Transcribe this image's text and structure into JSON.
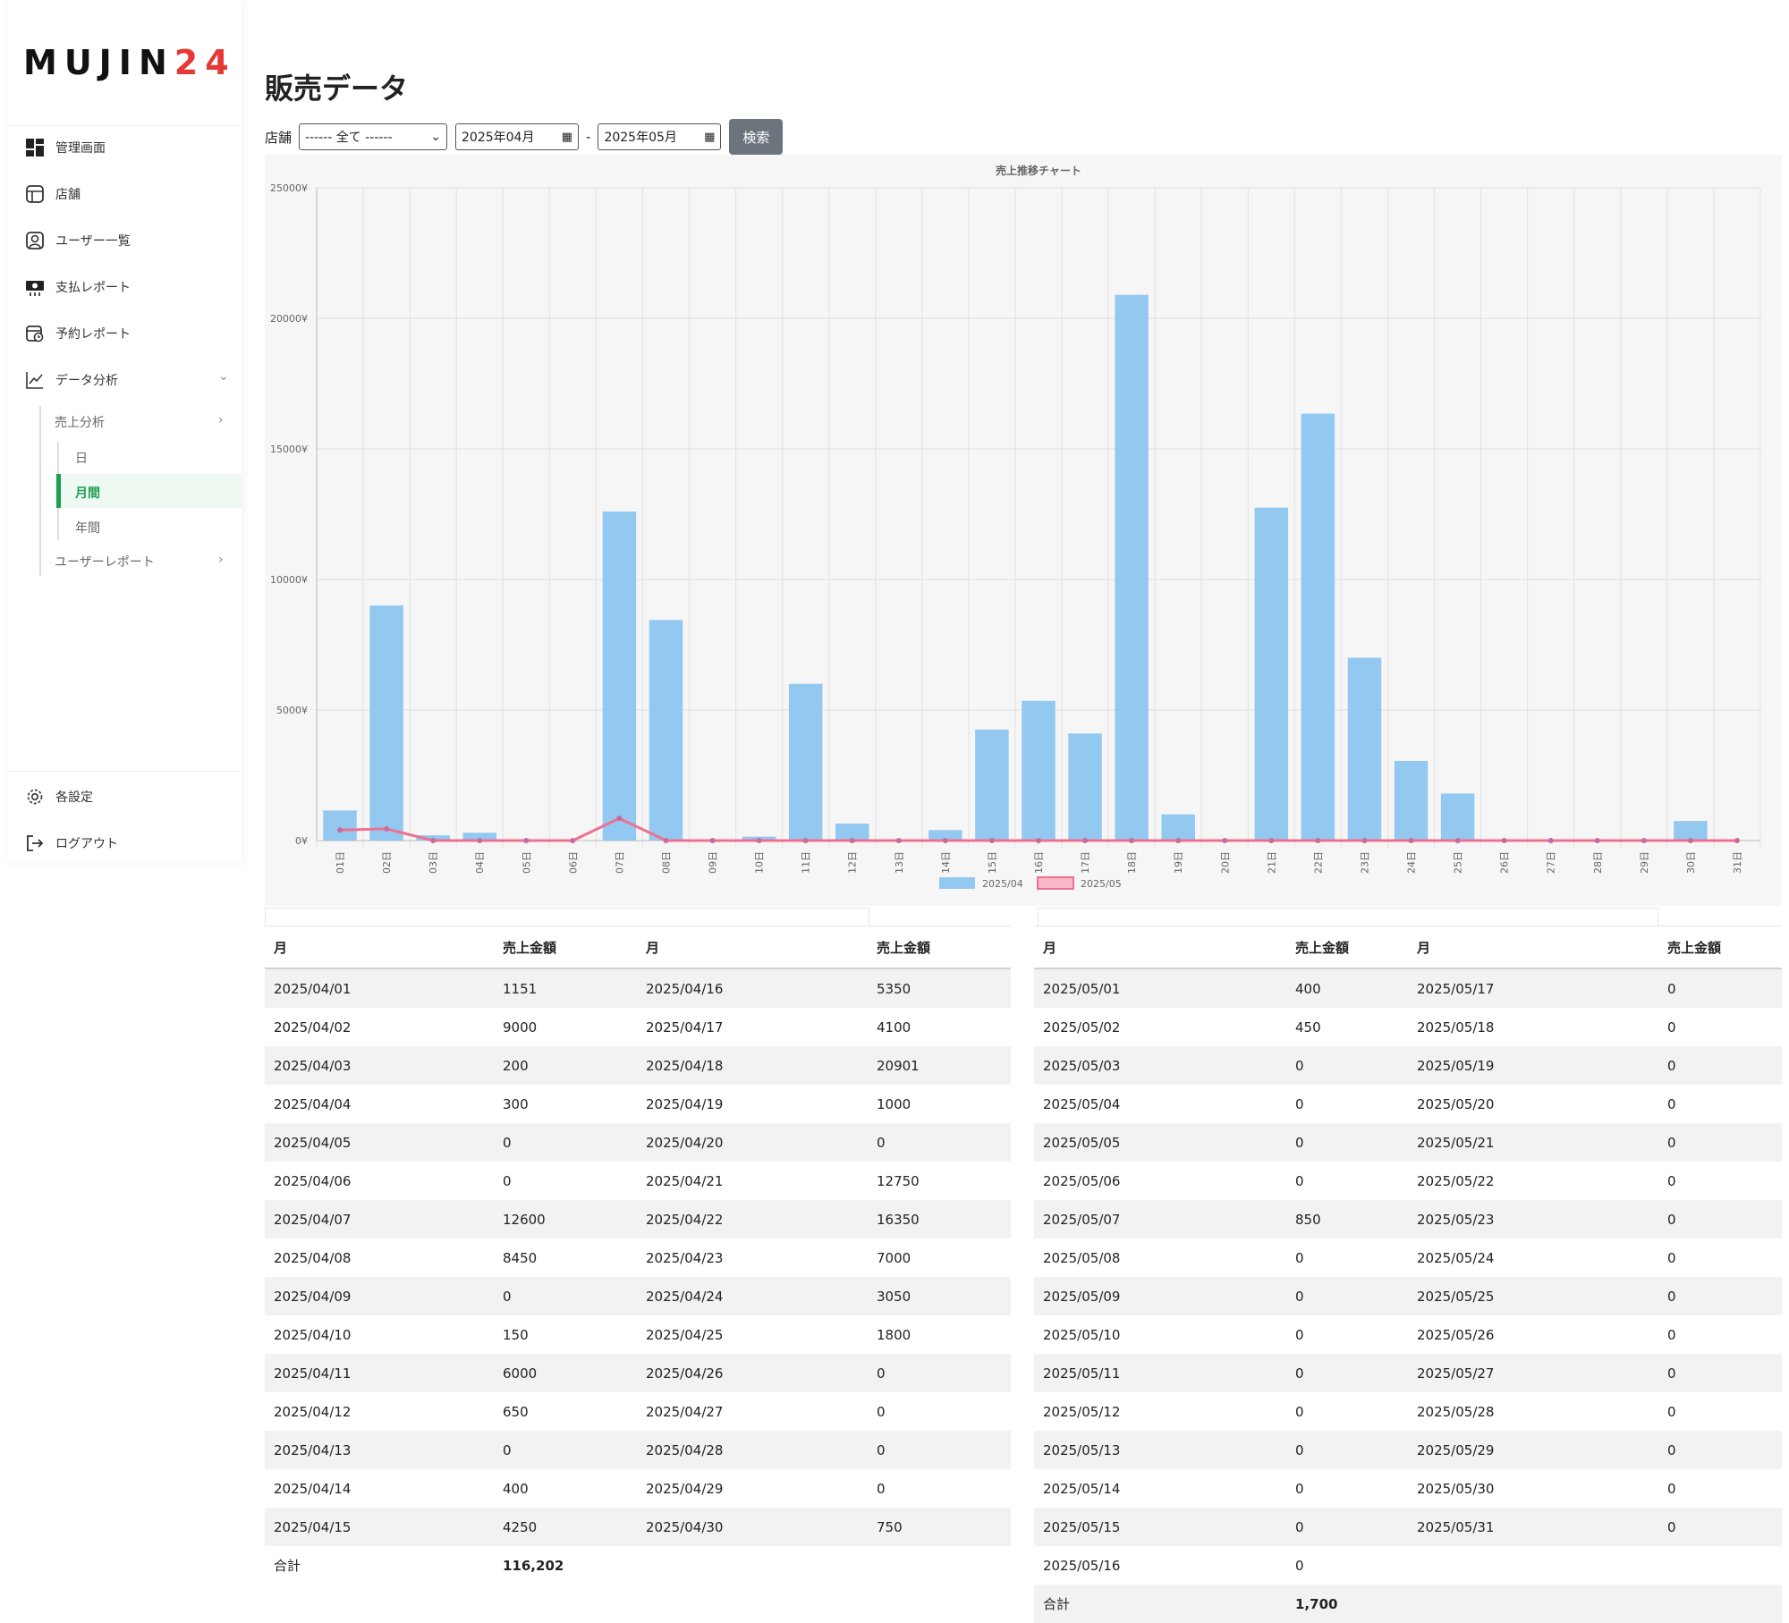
{
  "brand": {
    "logo_main": "MUJIN",
    "logo_accent": "24"
  },
  "sidebar": {
    "items": [
      {
        "label": "管理画面"
      },
      {
        "label": "店舗"
      },
      {
        "label": "ユーザー一覧"
      },
      {
        "label": "支払レポート"
      },
      {
        "label": "予約レポート"
      },
      {
        "label": "データ分析"
      }
    ],
    "analysis": {
      "sales": "売上分析",
      "day": "日",
      "month": "月間",
      "year": "年間",
      "user_report": "ユーザーレポート"
    },
    "settings": "各設定",
    "logout": "ログアウト"
  },
  "page": {
    "title": "販売データ"
  },
  "filters": {
    "store_label": "店舗",
    "store_value": "------ 全て ------",
    "from": "2025年04月",
    "sep": "-",
    "to": "2025年05月",
    "search": "検索"
  },
  "chart_data": {
    "type": "bar",
    "title": "売上推移チャート",
    "categories": [
      "01日",
      "02日",
      "03日",
      "04日",
      "05日",
      "06日",
      "07日",
      "08日",
      "09日",
      "10日",
      "11日",
      "12日",
      "13日",
      "14日",
      "15日",
      "16日",
      "17日",
      "18日",
      "19日",
      "20日",
      "21日",
      "22日",
      "23日",
      "24日",
      "25日",
      "26日",
      "27日",
      "28日",
      "29日",
      "30日",
      "31日"
    ],
    "yticks": [
      "0¥",
      "5000¥",
      "10000¥",
      "15000¥",
      "20000¥",
      "25000¥"
    ],
    "ylim": [
      0,
      25000
    ],
    "grid": true,
    "legend": "bottom",
    "series": [
      {
        "name": "2025/04",
        "type": "bar",
        "color": "#93c8f0",
        "values": [
          1151,
          9000,
          200,
          300,
          0,
          0,
          12600,
          8450,
          0,
          150,
          6000,
          650,
          0,
          400,
          4250,
          5350,
          4100,
          20901,
          1000,
          0,
          12750,
          16350,
          7000,
          3050,
          1800,
          0,
          0,
          0,
          0,
          750,
          null
        ]
      },
      {
        "name": "2025/05",
        "type": "line",
        "color": "#f07090",
        "values": [
          400,
          450,
          0,
          0,
          0,
          0,
          850,
          0,
          0,
          0,
          0,
          0,
          0,
          0,
          0,
          0,
          0,
          0,
          0,
          0,
          0,
          0,
          0,
          0,
          0,
          0,
          0,
          0,
          0,
          0,
          0
        ]
      }
    ]
  },
  "table_april": {
    "headers": [
      "月",
      "売上金額",
      "月",
      "売上金額"
    ],
    "rows": [
      [
        "2025/04/01",
        "1151",
        "2025/04/16",
        "5350"
      ],
      [
        "2025/04/02",
        "9000",
        "2025/04/17",
        "4100"
      ],
      [
        "2025/04/03",
        "200",
        "2025/04/18",
        "20901"
      ],
      [
        "2025/04/04",
        "300",
        "2025/04/19",
        "1000"
      ],
      [
        "2025/04/05",
        "0",
        "2025/04/20",
        "0"
      ],
      [
        "2025/04/06",
        "0",
        "2025/04/21",
        "12750"
      ],
      [
        "2025/04/07",
        "12600",
        "2025/04/22",
        "16350"
      ],
      [
        "2025/04/08",
        "8450",
        "2025/04/23",
        "7000"
      ],
      [
        "2025/04/09",
        "0",
        "2025/04/24",
        "3050"
      ],
      [
        "2025/04/10",
        "150",
        "2025/04/25",
        "1800"
      ],
      [
        "2025/04/11",
        "6000",
        "2025/04/26",
        "0"
      ],
      [
        "2025/04/12",
        "650",
        "2025/04/27",
        "0"
      ],
      [
        "2025/04/13",
        "0",
        "2025/04/28",
        "0"
      ],
      [
        "2025/04/14",
        "400",
        "2025/04/29",
        "0"
      ],
      [
        "2025/04/15",
        "4250",
        "2025/04/30",
        "750"
      ]
    ],
    "total_label": "合計",
    "total_value": "116,202"
  },
  "table_may": {
    "headers": [
      "月",
      "売上金額",
      "月",
      "売上金額"
    ],
    "rows": [
      [
        "2025/05/01",
        "400",
        "2025/05/17",
        "0"
      ],
      [
        "2025/05/02",
        "450",
        "2025/05/18",
        "0"
      ],
      [
        "2025/05/03",
        "0",
        "2025/05/19",
        "0"
      ],
      [
        "2025/05/04",
        "0",
        "2025/05/20",
        "0"
      ],
      [
        "2025/05/05",
        "0",
        "2025/05/21",
        "0"
      ],
      [
        "2025/05/06",
        "0",
        "2025/05/22",
        "0"
      ],
      [
        "2025/05/07",
        "850",
        "2025/05/23",
        "0"
      ],
      [
        "2025/05/08",
        "0",
        "2025/05/24",
        "0"
      ],
      [
        "2025/05/09",
        "0",
        "2025/05/25",
        "0"
      ],
      [
        "2025/05/10",
        "0",
        "2025/05/26",
        "0"
      ],
      [
        "2025/05/11",
        "0",
        "2025/05/27",
        "0"
      ],
      [
        "2025/05/12",
        "0",
        "2025/05/28",
        "0"
      ],
      [
        "2025/05/13",
        "0",
        "2025/05/29",
        "0"
      ],
      [
        "2025/05/14",
        "0",
        "2025/05/30",
        "0"
      ],
      [
        "2025/05/15",
        "0",
        "2025/05/31",
        "0"
      ],
      [
        "2025/05/16",
        "0",
        "",
        ""
      ]
    ],
    "total_label": "合計",
    "total_value": "1,700"
  }
}
